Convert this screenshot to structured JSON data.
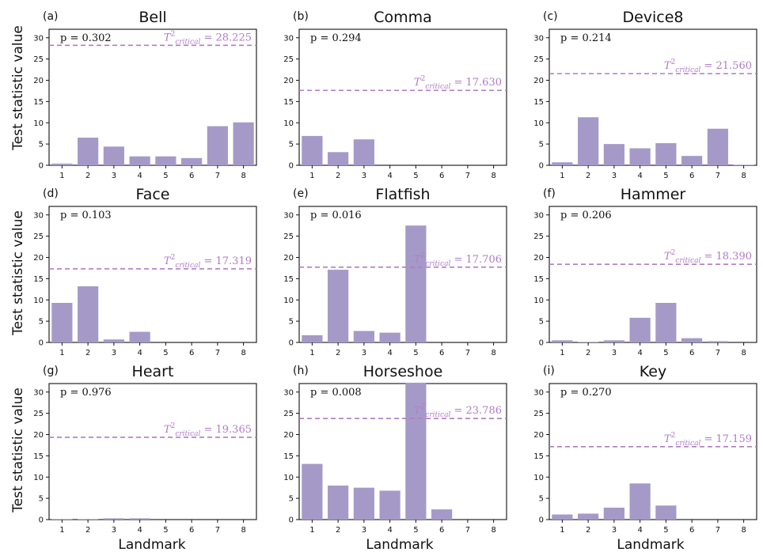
{
  "figure": {
    "ylabel": "Test statistic value",
    "xlabel": "Landmark"
  },
  "colors": {
    "bar": "#a59ac7",
    "critical_line": "#b07cc6",
    "axes": "#111111"
  },
  "chart_data": [
    {
      "type": "bar",
      "panel": "(a)",
      "title": "Bell",
      "categories": [
        "1",
        "2",
        "3",
        "4",
        "5",
        "6",
        "7",
        "8"
      ],
      "values": [
        0.4,
        6.5,
        4.4,
        2.1,
        2.1,
        1.7,
        9.2,
        10.1
      ],
      "p_text": "p = 0.302",
      "critical": 28.225,
      "critical_text": "= 28.225",
      "ylim": [
        0,
        32
      ],
      "yticks": [
        0,
        5,
        10,
        15,
        20,
        25,
        30
      ]
    },
    {
      "type": "bar",
      "panel": "(b)",
      "title": "Comma",
      "categories": [
        "1",
        "2",
        "3",
        "4",
        "5",
        "6",
        "7",
        "8"
      ],
      "values": [
        6.9,
        3.1,
        6.1,
        0,
        0,
        0,
        0,
        0
      ],
      "p_text": "p = 0.294",
      "critical": 17.63,
      "critical_text": "= 17.630",
      "ylim": [
        0,
        32
      ],
      "yticks": [
        0,
        5,
        10,
        15,
        20,
        25,
        30
      ]
    },
    {
      "type": "bar",
      "panel": "(c)",
      "title": "Device8",
      "categories": [
        "1",
        "2",
        "3",
        "4",
        "5",
        "6",
        "7",
        "8"
      ],
      "values": [
        0.7,
        11.3,
        5.0,
        4.0,
        5.2,
        2.2,
        8.6,
        0.1
      ],
      "p_text": "p = 0.214",
      "critical": 21.56,
      "critical_text": "= 21.560",
      "ylim": [
        0,
        32
      ],
      "yticks": [
        0,
        5,
        10,
        15,
        20,
        25,
        30
      ]
    },
    {
      "type": "bar",
      "panel": "(d)",
      "title": "Face",
      "categories": [
        "1",
        "2",
        "3",
        "4",
        "5",
        "6",
        "7",
        "8"
      ],
      "values": [
        9.3,
        13.2,
        0.7,
        2.5,
        0,
        0,
        0,
        0
      ],
      "p_text": "p = 0.103",
      "critical": 17.319,
      "critical_text": "= 17.319",
      "ylim": [
        0,
        32
      ],
      "yticks": [
        0,
        5,
        10,
        15,
        20,
        25,
        30
      ]
    },
    {
      "type": "bar",
      "panel": "(e)",
      "title": "Flatfish",
      "categories": [
        "1",
        "2",
        "3",
        "4",
        "5",
        "6",
        "7",
        "8"
      ],
      "values": [
        1.7,
        17.1,
        2.7,
        2.3,
        27.5,
        0,
        0,
        0
      ],
      "p_text": "p = 0.016",
      "critical": 17.706,
      "critical_text": "= 17.706",
      "ylim": [
        0,
        32
      ],
      "yticks": [
        0,
        5,
        10,
        15,
        20,
        25,
        30
      ]
    },
    {
      "type": "bar",
      "panel": "(f)",
      "title": "Hammer",
      "categories": [
        "1",
        "2",
        "3",
        "4",
        "5",
        "6",
        "7",
        "8"
      ],
      "values": [
        0.5,
        0.1,
        0.5,
        5.8,
        9.3,
        1.0,
        0.3,
        0
      ],
      "p_text": "p = 0.206",
      "critical": 18.39,
      "critical_text": "= 18.390",
      "ylim": [
        0,
        32
      ],
      "yticks": [
        0,
        5,
        10,
        15,
        20,
        25,
        30
      ]
    },
    {
      "type": "bar",
      "panel": "(g)",
      "title": "Heart",
      "categories": [
        "1",
        "2",
        "3",
        "4",
        "5",
        "6",
        "7",
        "8"
      ],
      "values": [
        0.1,
        0.1,
        0.3,
        0.3,
        0,
        0,
        0,
        0
      ],
      "p_text": "p = 0.976",
      "critical": 19.365,
      "critical_text": "= 19.365",
      "ylim": [
        0,
        32
      ],
      "yticks": [
        0,
        5,
        10,
        15,
        20,
        25,
        30
      ]
    },
    {
      "type": "bar",
      "panel": "(h)",
      "title": "Horseshoe",
      "categories": [
        "1",
        "2",
        "3",
        "4",
        "5",
        "6",
        "7",
        "8"
      ],
      "values": [
        13.1,
        8.0,
        7.5,
        6.8,
        32.2,
        2.4,
        0,
        0
      ],
      "p_text": "p = 0.008",
      "critical": 23.786,
      "critical_text": "= 23.786",
      "ylim": [
        0,
        32
      ],
      "yticks": [
        0,
        5,
        10,
        15,
        20,
        25,
        30
      ]
    },
    {
      "type": "bar",
      "panel": "(i)",
      "title": "Key",
      "categories": [
        "1",
        "2",
        "3",
        "4",
        "5",
        "6",
        "7",
        "8"
      ],
      "values": [
        1.2,
        1.4,
        2.8,
        8.5,
        3.3,
        0,
        0,
        0
      ],
      "p_text": "p = 0.270",
      "critical": 17.159,
      "critical_text": "= 17.159",
      "ylim": [
        0,
        32
      ],
      "yticks": [
        0,
        5,
        10,
        15,
        20,
        25,
        30
      ]
    }
  ]
}
